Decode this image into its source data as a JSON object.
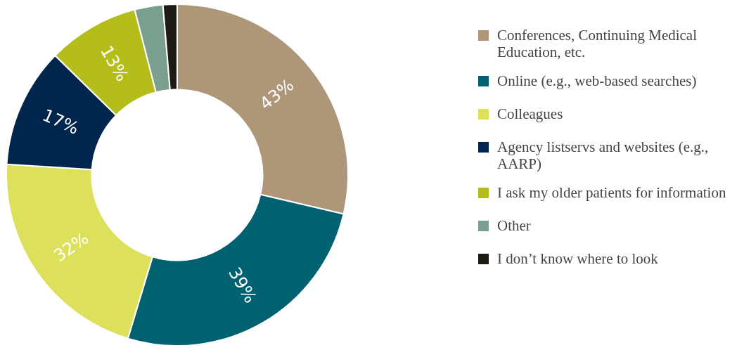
{
  "chart_data": {
    "type": "donut",
    "categories": [
      "Conferences, Continuing Medical Education, etc.",
      "Online (e.g., web-based searches)",
      "Colleagues",
      "Agency listservs and websites (e.g., AARP)",
      "I ask my older patients for information",
      "Other",
      "I don’t know where to look"
    ],
    "values": [
      43,
      39,
      32,
      17,
      13,
      4,
      2
    ],
    "colors": [
      "#ae9678",
      "#006170",
      "#dce05a",
      "#00264d",
      "#b5bd1a",
      "#7a9f8f",
      "#1e1a14"
    ],
    "value_labels": [
      "43%",
      "39%",
      "32%",
      "17%",
      "13%",
      null,
      null
    ],
    "legend": "right"
  }
}
